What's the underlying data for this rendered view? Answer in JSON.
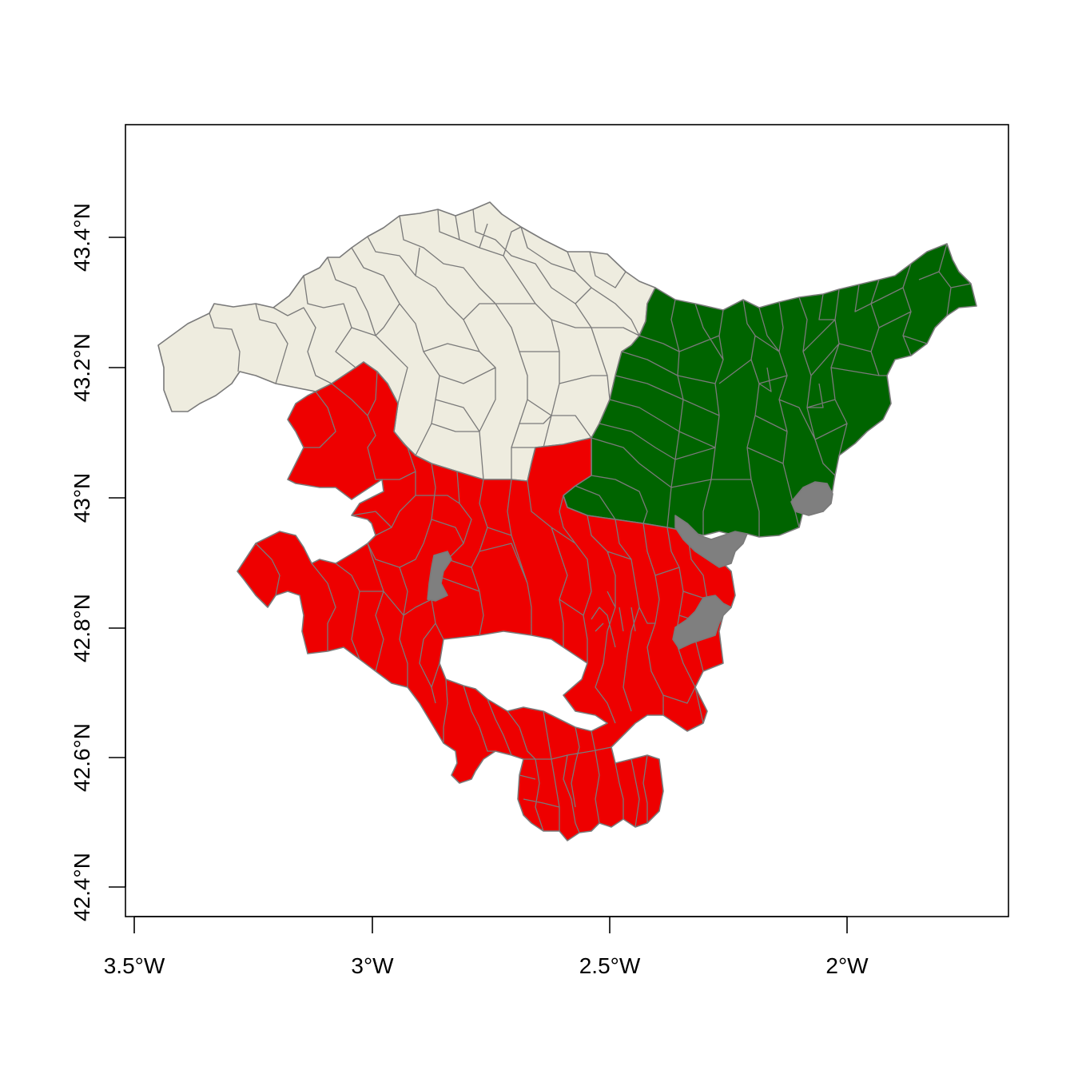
{
  "map": {
    "x_axis": {
      "ticks": [
        {
          "value": -3.5,
          "label": "3.5°W"
        },
        {
          "value": -3.0,
          "label": "3°W"
        },
        {
          "value": -2.5,
          "label": "2.5°W"
        },
        {
          "value": -2.0,
          "label": "2°W"
        }
      ]
    },
    "y_axis": {
      "ticks": [
        {
          "value": 42.4,
          "label": "42.4°N"
        },
        {
          "value": 42.6,
          "label": "42.6°N"
        },
        {
          "value": 42.8,
          "label": "42.8°N"
        },
        {
          "value": 43.0,
          "label": "43°N"
        },
        {
          "value": 43.2,
          "label": "43.2°N"
        },
        {
          "value": 43.4,
          "label": "43.4°N"
        }
      ]
    },
    "fill_colors": {
      "north_west_region": "#eeecdf",
      "north_east_region": "#006400",
      "south_region": "#ee0000",
      "enclaves": "#7f7f7f",
      "borders": "#7a7a7a"
    }
  }
}
